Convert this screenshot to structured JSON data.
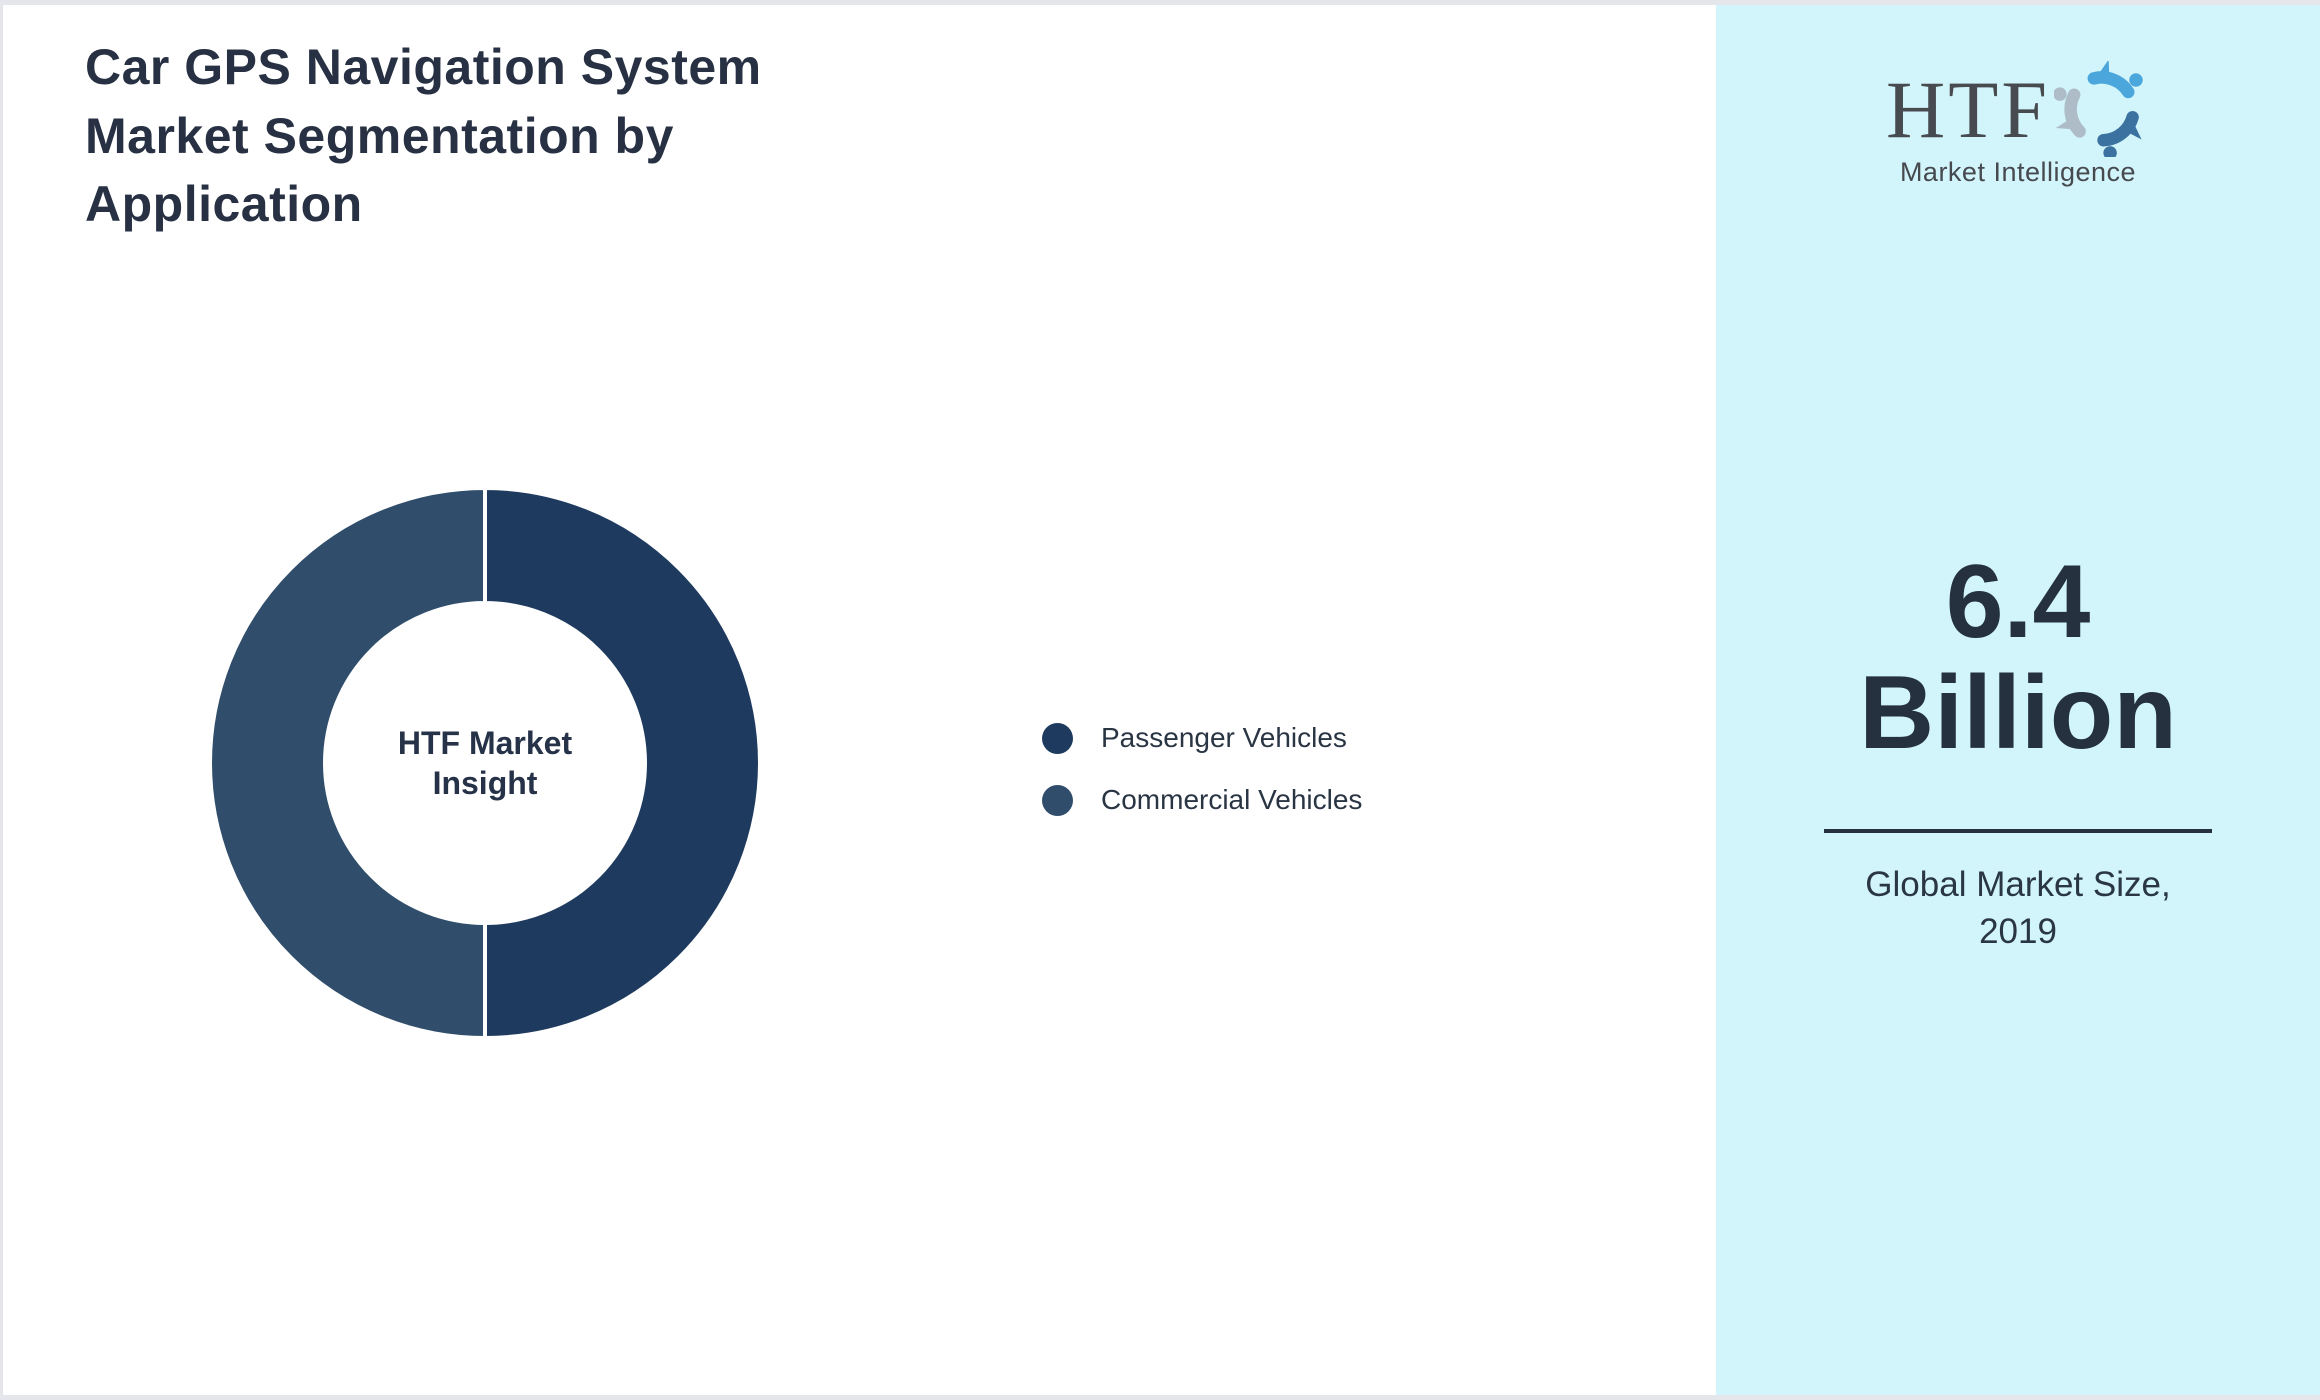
{
  "title": {
    "full": "Car GPS Navigation System Market Segmentation by Application",
    "line1": "Car GPS Navigation System",
    "line2": "Market Segmentation by",
    "line3": "Application"
  },
  "chart": {
    "center_label_line1": "HTF Market",
    "center_label_line2": "Insight"
  },
  "legend": {
    "items": [
      {
        "label": "Passenger Vehicles",
        "color": "#1E3A5E"
      },
      {
        "label": "Commercial Vehicles",
        "color": "#304E6B"
      }
    ]
  },
  "sidebar": {
    "background": "#D1F5FB",
    "logo": {
      "brand": "HTF",
      "tagline": "Market Intelligence",
      "swirl_colors": [
        "#4BA7DB",
        "#3B72A0",
        "#ADBCC7"
      ]
    },
    "stat_value_line1": "6.4",
    "stat_value_line2": "Billion",
    "stat_caption_line1": "Global Market Size,",
    "stat_caption_line2": "2019"
  },
  "chart_data": {
    "type": "pie",
    "subtype": "donut",
    "title": "Car GPS Navigation System Market Segmentation by Application",
    "categories": [
      "Passenger Vehicles",
      "Commercial Vehicles"
    ],
    "values": [
      50,
      50
    ],
    "unit": "% share (estimated from equal halves)",
    "colors": [
      "#1E3A5E",
      "#304E6B"
    ],
    "center_label": "HTF Market Insight",
    "legend_position": "right-of-chart",
    "start_angle_deg": 0,
    "direction": "clockwise",
    "inner_radius_ratio": 0.58,
    "segment_stroke": "#FFFFFF"
  }
}
